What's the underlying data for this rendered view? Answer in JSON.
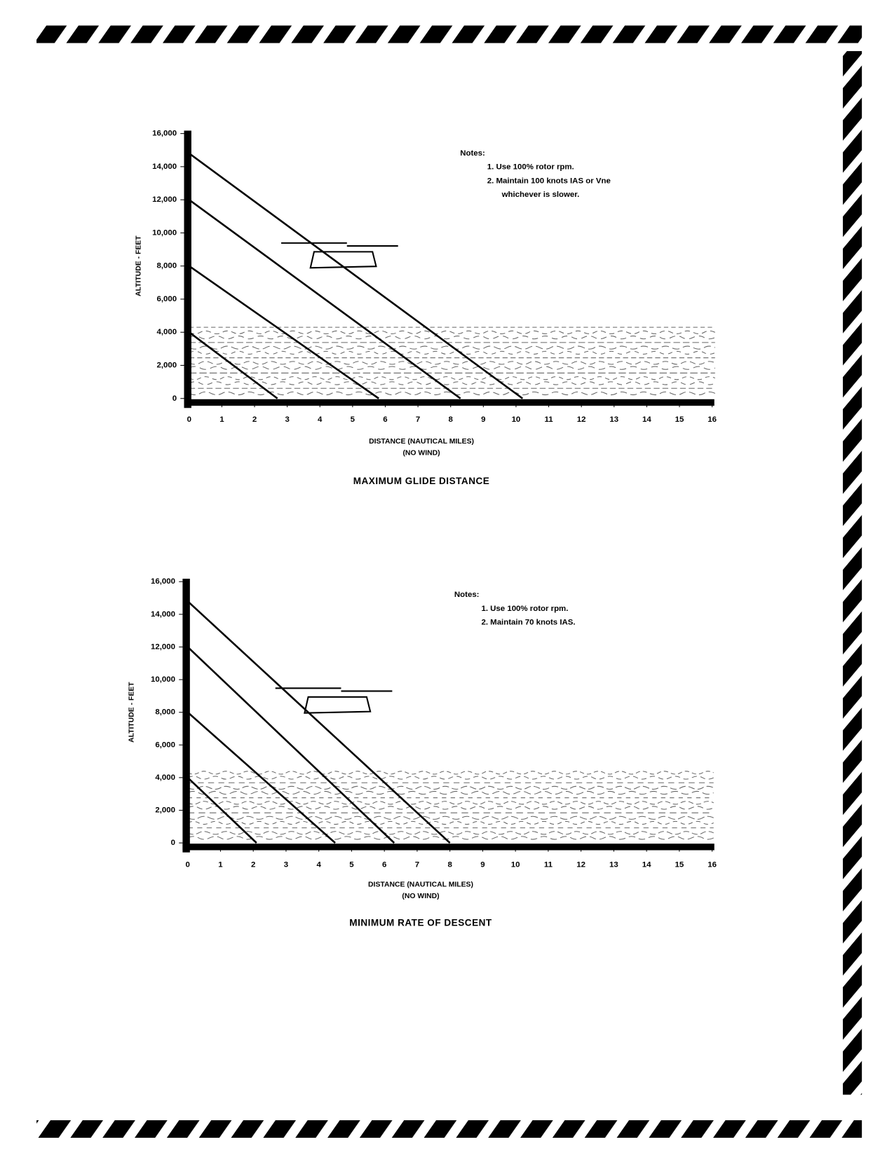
{
  "chart_data": [
    {
      "type": "line",
      "title": "MAXIMUM GLIDE DISTANCE",
      "x_label": "DISTANCE (NAUTICAL MILES)",
      "x_label_sub": "(NO WIND)",
      "y_label": "ALTITUDE - FEET",
      "notes_title": "Notes:",
      "notes": [
        "1.  Use 100% rotor rpm.",
        "2.  Maintain  100 knots IAS or Vne",
        "whichever is slower."
      ],
      "series": [
        {
          "color": "#000000",
          "x": [
            0,
            2.7
          ],
          "values": [
            4000,
            0
          ]
        },
        {
          "color": "#000000",
          "x": [
            0,
            5.8
          ],
          "values": [
            8000,
            0
          ]
        },
        {
          "color": "#000000",
          "x": [
            0,
            8.3
          ],
          "values": [
            12000,
            0
          ]
        },
        {
          "color": "#000000",
          "x": [
            0,
            10.2
          ],
          "values": [
            14800,
            0
          ]
        }
      ],
      "xlim": [
        0,
        16
      ],
      "xticks": [
        0,
        1,
        2,
        3,
        4,
        5,
        6,
        7,
        8,
        9,
        10,
        11,
        12,
        13,
        14,
        15,
        16
      ],
      "ylim": [
        0,
        16000
      ],
      "yticks": [
        0,
        {
          "value": 2000,
          "label": "2,000"
        },
        {
          "value": 4000,
          "label": "4,000"
        },
        {
          "value": 6000,
          "label": "6,000"
        },
        {
          "value": 8000,
          "label": "8,000"
        },
        {
          "value": 10000,
          "label": "10,000"
        },
        {
          "value": 12000,
          "label": "12,000"
        },
        {
          "value": 14000,
          "label": "14,000"
        },
        {
          "value": 16000,
          "label": "16,000"
        }
      ]
    },
    {
      "type": "line",
      "title": "MINIMUM RATE OF DESCENT",
      "x_label": "DISTANCE (NAUTICAL MILES)",
      "x_label_sub": "(NO WIND)",
      "y_label": "ALTITUDE - FEET",
      "notes_title": "Notes:",
      "notes": [
        "1.  Use 100% rotor rpm.",
        "2.  Maintain 70 knots IAS."
      ],
      "series": [
        {
          "color": "#000000",
          "x": [
            0,
            2.1
          ],
          "values": [
            4000,
            0
          ]
        },
        {
          "color": "#000000",
          "x": [
            0,
            4.5
          ],
          "values": [
            8000,
            0
          ]
        },
        {
          "color": "#000000",
          "x": [
            0,
            6.3
          ],
          "values": [
            12000,
            0
          ]
        },
        {
          "color": "#000000",
          "x": [
            0,
            8.0
          ],
          "values": [
            14800,
            0
          ]
        }
      ],
      "xlim": [
        0,
        16
      ],
      "xticks": [
        0,
        1,
        2,
        3,
        4,
        5,
        6,
        7,
        8,
        9,
        10,
        11,
        12,
        13,
        14,
        15,
        16
      ],
      "ylim": [
        0,
        16000
      ],
      "yticks": [
        0,
        {
          "value": 2000,
          "label": "2,000"
        },
        {
          "value": 4000,
          "label": "4,000"
        },
        {
          "value": 6000,
          "label": "6,000"
        },
        {
          "value": 8000,
          "label": "8,000"
        },
        {
          "value": 10000,
          "label": "10,000"
        },
        {
          "value": 12000,
          "label": "12,000"
        },
        {
          "value": 14000,
          "label": "14,000"
        },
        {
          "value": 16000,
          "label": "16,000"
        }
      ]
    }
  ]
}
